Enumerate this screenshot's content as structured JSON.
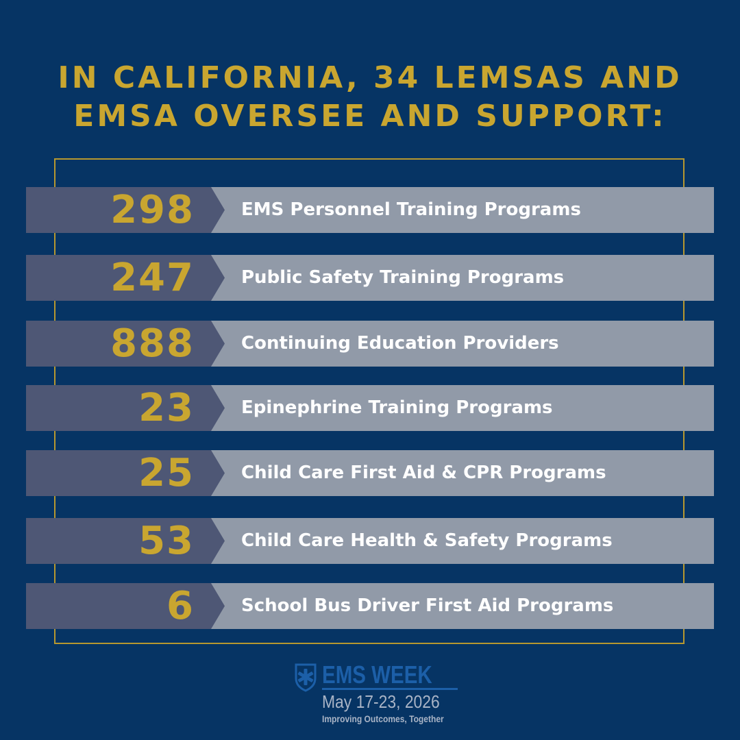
{
  "header": {
    "line1": "IN CALIFORNIA, 34 LEMSAS AND",
    "line2": "EMSA OVERSEE AND SUPPORT:"
  },
  "stats": [
    {
      "number": "298",
      "label": "EMS Personnel Training Programs"
    },
    {
      "number": "247",
      "label": "Public Safety Training Programs"
    },
    {
      "number": "888",
      "label": "Continuing Education Providers"
    },
    {
      "number": "23",
      "label": "Epinephrine Training Programs"
    },
    {
      "number": "25",
      "label": "Child Care First Aid & CPR Programs"
    },
    {
      "number": "53",
      "label": "Child Care Health & Safety Programs"
    },
    {
      "number": "6",
      "label": "School Bus Driver First Aid Programs"
    }
  ],
  "footer": {
    "logo_text": "EMS WEEK",
    "dates": "May 17-23, 2026",
    "tagline": "Improving Outcomes, Together",
    "logo_icon": "star-of-life-shield-icon"
  },
  "colors": {
    "background": "#063464",
    "accent_gold": "#C9A630",
    "number_band": "#4E5775",
    "label_band": "#919AA8",
    "logo_blue": "#1C5FA8"
  }
}
